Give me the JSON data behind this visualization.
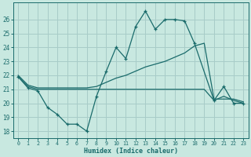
{
  "xlabel": "Humidex (Indice chaleur)",
  "bg_color": "#c8e8e0",
  "line_color": "#1a6b6b",
  "grid_color": "#a8ccc8",
  "ylim": [
    17.5,
    27.2
  ],
  "xlim": [
    -0.5,
    23.5
  ],
  "yticks": [
    18,
    19,
    20,
    21,
    22,
    23,
    24,
    25,
    26
  ],
  "xticks": [
    0,
    1,
    2,
    3,
    4,
    5,
    6,
    7,
    8,
    9,
    10,
    11,
    12,
    13,
    14,
    15,
    16,
    17,
    18,
    19,
    20,
    21,
    22,
    23
  ],
  "series1_x": [
    0,
    1,
    2,
    3,
    4,
    5,
    6,
    7,
    8,
    9,
    10,
    11,
    12,
    13,
    14,
    15,
    16,
    17,
    18,
    20,
    21,
    22,
    23
  ],
  "series1_y": [
    21.9,
    21.1,
    20.9,
    19.7,
    19.2,
    18.5,
    18.5,
    18.0,
    20.5,
    22.3,
    24.0,
    23.2,
    25.5,
    26.6,
    25.3,
    26.0,
    26.0,
    25.9,
    24.3,
    20.2,
    21.2,
    20.0,
    20.0
  ],
  "series2_x": [
    0,
    1,
    2,
    3,
    4,
    5,
    6,
    7,
    8,
    9,
    10,
    11,
    12,
    13,
    14,
    15,
    16,
    17,
    18,
    19,
    20,
    21,
    22,
    23
  ],
  "series2_y": [
    22.0,
    21.3,
    21.1,
    21.1,
    21.1,
    21.1,
    21.1,
    21.1,
    21.2,
    21.5,
    21.8,
    22.0,
    22.3,
    22.6,
    22.8,
    23.0,
    23.3,
    23.6,
    24.1,
    24.3,
    20.3,
    20.3,
    20.3,
    20.1
  ],
  "series3_x": [
    0,
    1,
    2,
    3,
    4,
    5,
    6,
    7,
    8,
    9,
    10,
    11,
    12,
    13,
    14,
    15,
    16,
    17,
    18,
    19,
    20,
    21,
    22,
    23
  ],
  "series3_y": [
    21.9,
    21.2,
    21.0,
    21.0,
    21.0,
    21.0,
    21.0,
    21.0,
    21.0,
    21.0,
    21.0,
    21.0,
    21.0,
    21.0,
    21.0,
    21.0,
    21.0,
    21.0,
    21.0,
    21.0,
    20.2,
    20.5,
    20.2,
    20.0
  ]
}
